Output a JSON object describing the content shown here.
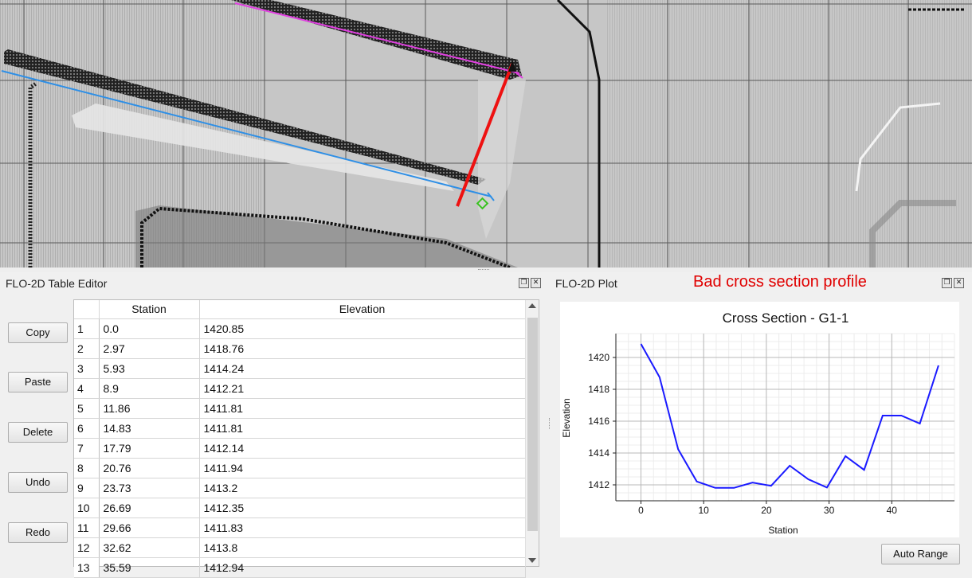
{
  "map": {
    "lines": [
      {
        "name": "blue-cross-section-line",
        "color": "#2e8fe6"
      },
      {
        "name": "magenta-line",
        "color": "#e040e0"
      },
      {
        "name": "red-arrow",
        "color": "#ee1111"
      },
      {
        "name": "green-diamond-marker",
        "color": "#39c21f"
      }
    ]
  },
  "table_editor": {
    "title": "FLO-2D Table Editor",
    "buttons": {
      "copy": "Copy",
      "paste": "Paste",
      "delete": "Delete",
      "undo": "Undo",
      "redo": "Redo"
    },
    "columns": [
      "Station",
      "Elevation"
    ],
    "rows": [
      {
        "n": "1",
        "station": "0.0",
        "elevation": "1420.85"
      },
      {
        "n": "2",
        "station": "2.97",
        "elevation": "1418.76"
      },
      {
        "n": "3",
        "station": "5.93",
        "elevation": "1414.24"
      },
      {
        "n": "4",
        "station": "8.9",
        "elevation": "1412.21"
      },
      {
        "n": "5",
        "station": "11.86",
        "elevation": "1411.81"
      },
      {
        "n": "6",
        "station": "14.83",
        "elevation": "1411.81"
      },
      {
        "n": "7",
        "station": "17.79",
        "elevation": "1412.14"
      },
      {
        "n": "8",
        "station": "20.76",
        "elevation": "1411.94"
      },
      {
        "n": "9",
        "station": "23.73",
        "elevation": "1413.2"
      },
      {
        "n": "10",
        "station": "26.69",
        "elevation": "1412.35"
      },
      {
        "n": "11",
        "station": "29.66",
        "elevation": "1411.83"
      },
      {
        "n": "12",
        "station": "32.62",
        "elevation": "1413.8"
      },
      {
        "n": "13",
        "station": "35.59",
        "elevation": "1412.94"
      }
    ]
  },
  "plot_panel": {
    "title": "FLO-2D Plot",
    "annotation": "Bad cross section profile",
    "auto_range": "Auto Range",
    "win_float": "❐",
    "win_close": "✕"
  },
  "chart_data": {
    "type": "line",
    "title": "Cross Section - G1-1",
    "xlabel": "Station",
    "ylabel": "Elevation",
    "xlim": [
      -4,
      50
    ],
    "ylim": [
      1411,
      1421.5
    ],
    "xticks": [
      0,
      10,
      20,
      30,
      40
    ],
    "yticks": [
      1412,
      1414,
      1416,
      1418,
      1420
    ],
    "grid": true,
    "line_color": "#1a1aff",
    "series": [
      {
        "x": [
          0.0,
          2.97,
          5.93,
          8.9,
          11.86,
          14.83,
          17.79,
          20.76,
          23.73,
          26.69,
          29.66,
          32.62,
          35.59,
          38.55,
          41.52,
          44.48,
          47.45
        ],
        "y": [
          1420.85,
          1418.76,
          1414.24,
          1412.21,
          1411.81,
          1411.81,
          1412.14,
          1411.94,
          1413.2,
          1412.35,
          1411.83,
          1413.8,
          1412.94,
          1416.35,
          1416.35,
          1415.85,
          1419.5
        ]
      }
    ]
  }
}
